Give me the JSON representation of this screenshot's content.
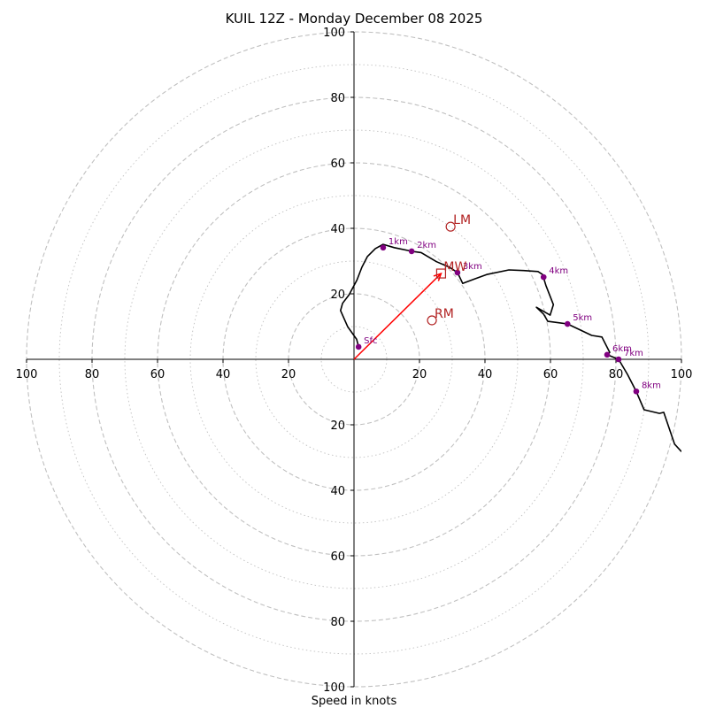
{
  "chart_data": {
    "type": "scatter",
    "title": "KUIL 12Z - Monday December 08 2025",
    "xlabel": "Speed in knots",
    "ylabel": "",
    "xlim": [
      -100,
      100
    ],
    "ylim": [
      -100,
      100
    ],
    "rings_major": [
      20,
      40,
      60,
      80,
      100
    ],
    "rings_minor": [
      10,
      30,
      50,
      70,
      90
    ],
    "x_ticks": [
      {
        "v": -100,
        "label": "100"
      },
      {
        "v": -80,
        "label": "80"
      },
      {
        "v": -60,
        "label": "60"
      },
      {
        "v": -40,
        "label": "40"
      },
      {
        "v": -20,
        "label": "20"
      },
      {
        "v": 20,
        "label": "20"
      },
      {
        "v": 40,
        "label": "40"
      },
      {
        "v": 60,
        "label": "60"
      },
      {
        "v": 80,
        "label": "80"
      },
      {
        "v": 100,
        "label": "100"
      }
    ],
    "y_ticks": [
      {
        "v": 100,
        "label": "100"
      },
      {
        "v": 80,
        "label": "80"
      },
      {
        "v": 60,
        "label": "60"
      },
      {
        "v": 40,
        "label": "40"
      },
      {
        "v": 20,
        "label": "20"
      },
      {
        "v": -20,
        "label": "20"
      },
      {
        "v": -40,
        "label": "40"
      },
      {
        "v": -60,
        "label": "60"
      },
      {
        "v": -80,
        "label": "80"
      },
      {
        "v": -100,
        "label": "100"
      }
    ],
    "hodograph": {
      "u": [
        1.4,
        0.8,
        -1.9,
        -4.1,
        -3.5,
        -1.5,
        0.9,
        2.4,
        4.1,
        6.5,
        8.9,
        12.3,
        17.6,
        20.5,
        25.2,
        29.2,
        31.6,
        33.2,
        36.7,
        40.5,
        47.3,
        51.8,
        56.2,
        57.6,
        58.6,
        60.9,
        59.9,
        55.7,
        57.9,
        59.2,
        65.2,
        72.6,
        75.7,
        78.1,
        77.3,
        80.8,
        83.5,
        86.2,
        88.6,
        93.3,
        94.6,
        97.9,
        100.0
      ],
      "v": [
        3.8,
        6.1,
        9.9,
        14.9,
        17.1,
        19.7,
        24.2,
        28.1,
        31.4,
        33.8,
        35.1,
        34.1,
        33.0,
        32.6,
        29.8,
        28.1,
        26.5,
        23.2,
        24.5,
        25.9,
        27.3,
        27.1,
        26.8,
        25.9,
        22.6,
        16.7,
        13.5,
        15.9,
        13.8,
        11.6,
        10.8,
        7.3,
        6.8,
        2.1,
        1.4,
        0.0,
        -4.6,
        -9.8,
        -15.4,
        -16.5,
        -16.2,
        -25.9,
        -28.2
      ]
    },
    "height_markers": [
      {
        "label": "Sfc",
        "u": 1.4,
        "v": 3.8
      },
      {
        "label": "1km",
        "u": 8.9,
        "v": 34.1
      },
      {
        "label": "2km",
        "u": 17.6,
        "v": 33.0
      },
      {
        "label": "3km",
        "u": 31.6,
        "v": 26.5
      },
      {
        "label": "4km",
        "u": 57.9,
        "v": 25.1
      },
      {
        "label": "5km",
        "u": 65.2,
        "v": 10.8
      },
      {
        "label": "6km",
        "u": 77.3,
        "v": 1.4
      },
      {
        "label": "7km",
        "u": 80.8,
        "v": 0.0
      },
      {
        "label": "8km",
        "u": 86.2,
        "v": -9.8
      }
    ],
    "storm_motion": [
      {
        "label": "LM",
        "u": 29.5,
        "v": 40.5,
        "marker": "circle"
      },
      {
        "label": "MW",
        "u": 26.6,
        "v": 26.2,
        "marker": "square"
      },
      {
        "label": "RM",
        "u": 23.8,
        "v": 11.9,
        "marker": "circle"
      }
    ],
    "shear_vector": {
      "u_from": 0,
      "v_from": 0,
      "u_to": 26.6,
      "v_to": 26.2
    },
    "colors": {
      "hodograph": "#000000",
      "height_marker": "#800080",
      "storm_motion": "#b22222",
      "shear_vector": "#ff0000",
      "ring": "#c0c0c0",
      "axis": "#000000"
    },
    "grid": true
  }
}
